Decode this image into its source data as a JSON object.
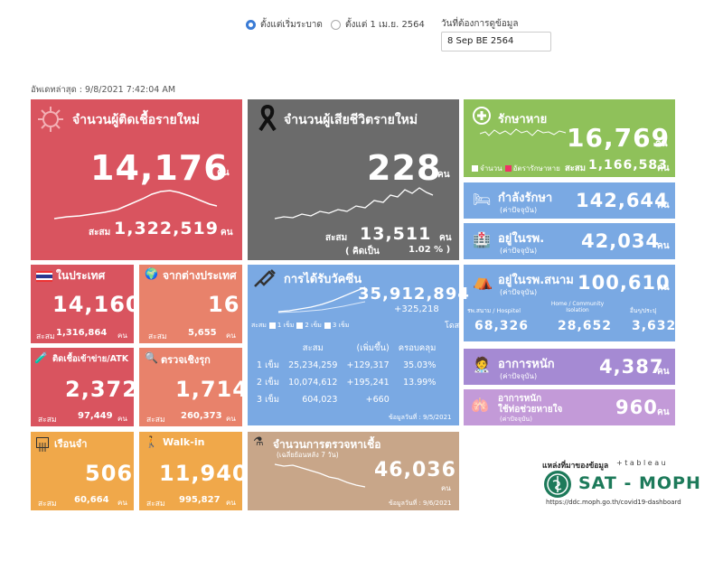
{
  "filters": {
    "option_all": "ตั้งแต่เริ่มระบาด",
    "option_april": "ตั้งแต่ 1 เม.ย. 2564",
    "date_label": "วันที่ต้องการดูข้อมูล",
    "date_value": "8 Sep BE 2564"
  },
  "updated": "อัพเดทล่าสุด : 9/8/2021 7:42:04 AM",
  "unit": "คน",
  "new_cases": {
    "title": "จำนวนผู้ติดเชื้อรายใหม่",
    "value": "14,176",
    "cum_label": "สะสม",
    "cum_value": "1,322,519",
    "color": "#d9545f"
  },
  "deaths": {
    "title": "จำนวนผู้เสียชีวิตรายใหม่",
    "value": "228",
    "cum_label": "สะสม",
    "cum_value": "13,511",
    "pct_label": "( คิดเป็น",
    "pct_value": "1.02 % )",
    "color": "#6b6b6b"
  },
  "recovered": {
    "title": "รักษาหาย",
    "value": "16,769",
    "legend_a": "จำนวน",
    "legend_b": "อัตรารักษาหาย",
    "cum_label": "สะสม",
    "cum_value": "1,166,583",
    "color": "#8fc15a"
  },
  "treating": {
    "title": "กำลังรักษา",
    "sub": "(ค่าปัจจุบัน)",
    "value": "142,644",
    "color": "#7aa9e3"
  },
  "hospital": {
    "title": "อยู่ในรพ.",
    "sub": "(ค่าปัจจุบัน)",
    "value": "42,034",
    "color": "#7aa9e3"
  },
  "field_hospital": {
    "title": "อยู่ในรพ.สนาม",
    "sub": "(ค่าปัจจุบัน)",
    "value": "100,610",
    "c1_label": "รพ.สนาม / Hospitel",
    "c1_value": "68,326",
    "c2_label": "Home / Community Isolation",
    "c2_value": "28,652",
    "c3_label": "อื่นๆ/ประปุ",
    "c3_value": "3,632",
    "color": "#7aa9e3"
  },
  "severe": {
    "title": "อาการหนัก",
    "sub": "(ค่าปัจจุบัน)",
    "value": "4,387",
    "color": "#a58ad3"
  },
  "ventilator": {
    "title": "อาการหนัก",
    "title2": "ใช้ท่อช่วยหายใจ",
    "sub": "(ค่าปัจจุบัน)",
    "value": "960",
    "color": "#c39ad8"
  },
  "domestic": {
    "title": "ในประเทศ",
    "value": "14,160",
    "cum_label": "สะสม",
    "cum_value": "1,316,864",
    "color": "#d9545f"
  },
  "imported": {
    "title": "จากต่างประเทศ",
    "value": "16",
    "cum_label": "สะสม",
    "cum_value": "5,655",
    "color": "#e8826b"
  },
  "atk": {
    "title": "ติดเชื้อเข้าข่าย/ATK",
    "value": "2,372",
    "cum_label": "สะสม",
    "cum_value": "97,449",
    "color": "#d9545f"
  },
  "active_search": {
    "title": "ตรวจเชิงรุก",
    "value": "1,714",
    "cum_label": "สะสม",
    "cum_value": "260,373",
    "color": "#e8826b"
  },
  "prison": {
    "title": "เรือนจำ",
    "value": "506",
    "cum_label": "สะสม",
    "cum_value": "60,664",
    "color": "#f0a84a"
  },
  "walkin": {
    "title": "Walk-in",
    "value": "11,940",
    "cum_label": "สะสม",
    "cum_value": "995,827",
    "color": "#f0a84a"
  },
  "vaccine": {
    "title": "การได้รับวัคซีน",
    "total": "35,912,894",
    "delta": "+325,218",
    "dose_unit": "โดส",
    "legend": [
      "สะสม",
      "1 เข็ม",
      "2 เข็ม",
      "3 เข็ม"
    ],
    "headers": [
      "สะสม",
      "(เพิ่มขึ้น)",
      "ครอบคลุม"
    ],
    "rows": [
      {
        "label": "1 เข็ม",
        "cum": "25,234,259",
        "inc": "+129,317",
        "cov": "35.03%"
      },
      {
        "label": "2 เข็ม",
        "cum": "10,074,612",
        "inc": "+195,241",
        "cov": "13.99%"
      },
      {
        "label": "3 เข็ม",
        "cum": "604,023",
        "inc": "+660",
        "cov": ""
      }
    ],
    "as_of": "ข้อมูลวันที่ : 9/5/2021",
    "color": "#7aa9e3"
  },
  "tests": {
    "title": "จำนวนการตรวจหาเชื้อ",
    "sub": "(เฉลี่ยย้อนหลัง 7 วัน)",
    "value": "46,036",
    "as_of": "ข้อมูลวันที่ : 9/6/2021",
    "color": "#c8a689"
  },
  "source": {
    "label": "แหล่งที่มาของข้อมูล",
    "tableau": "+ t a b l e a u",
    "org": "SAT - MOPH",
    "url": "https://ddc.moph.go.th/covid19-dashboard"
  }
}
